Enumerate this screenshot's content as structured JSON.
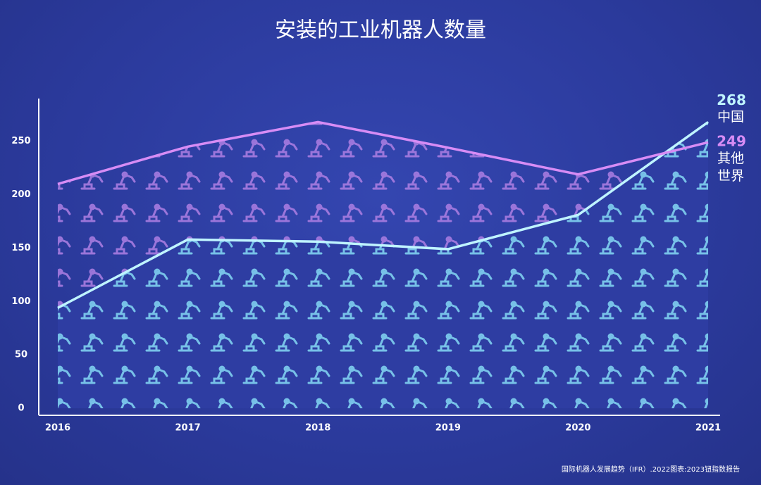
{
  "chart_data": {
    "type": "line",
    "title": "安装的工业机器人数量",
    "x": [
      2016,
      2017,
      2018,
      2019,
      2020,
      2021
    ],
    "xlim": [
      2016,
      2021
    ],
    "xticks": [
      2016,
      2017,
      2018,
      2019,
      2020,
      2021
    ],
    "ylim": [
      0,
      290
    ],
    "yticks": [
      0,
      50,
      100,
      150,
      200,
      250
    ],
    "series": [
      {
        "name": "中国",
        "color": "#bff4ff",
        "icon_color": "#7fd0f0",
        "values": [
          94,
          158,
          156,
          149,
          181,
          268
        ]
      },
      {
        "name": "其他世界",
        "color": "#d78cf5",
        "icon_color": "#a77be0",
        "values": [
          210,
          245,
          268,
          244,
          219,
          249
        ]
      }
    ],
    "source": "国际机器人发展趋势（IFR）.2022图表:2023钮指数报告"
  }
}
